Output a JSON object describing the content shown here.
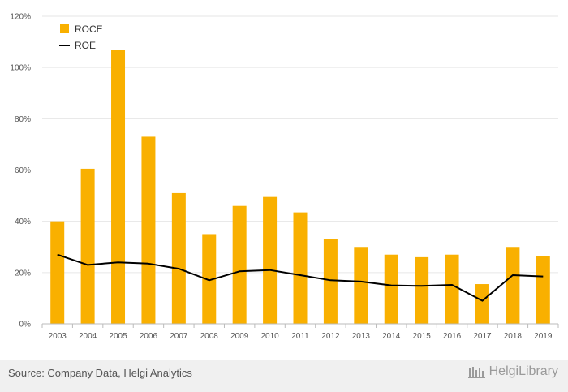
{
  "chart_data": {
    "type": "bar",
    "categories": [
      "2003",
      "2004",
      "2005",
      "2006",
      "2007",
      "2008",
      "2009",
      "2010",
      "2011",
      "2012",
      "2013",
      "2014",
      "2015",
      "2016",
      "2017",
      "2018",
      "2019"
    ],
    "series": [
      {
        "name": "ROCE",
        "type": "bar",
        "color": "#F9B000",
        "values": [
          40,
          60.5,
          107,
          73,
          51,
          35,
          46,
          49.5,
          43.5,
          33,
          30,
          27,
          26,
          27,
          15.5,
          30,
          26.5
        ]
      },
      {
        "name": "ROE",
        "type": "line",
        "color": "#000000",
        "values": [
          27,
          23,
          24,
          23.5,
          21.5,
          17,
          20.5,
          21,
          19,
          17,
          16.5,
          15,
          14.8,
          15.2,
          9,
          19,
          18.5
        ]
      }
    ],
    "yticks": [
      "0%",
      "20%",
      "40%",
      "60%",
      "80%",
      "100%",
      "120%"
    ],
    "ylim": [
      0,
      120
    ],
    "title": "",
    "xlabel": "",
    "ylabel": "",
    "grid": true,
    "legend": "top-left"
  },
  "footer": {
    "source": "Source: Company Data, Helgi Analytics",
    "brand": "HelgiLibrary"
  }
}
